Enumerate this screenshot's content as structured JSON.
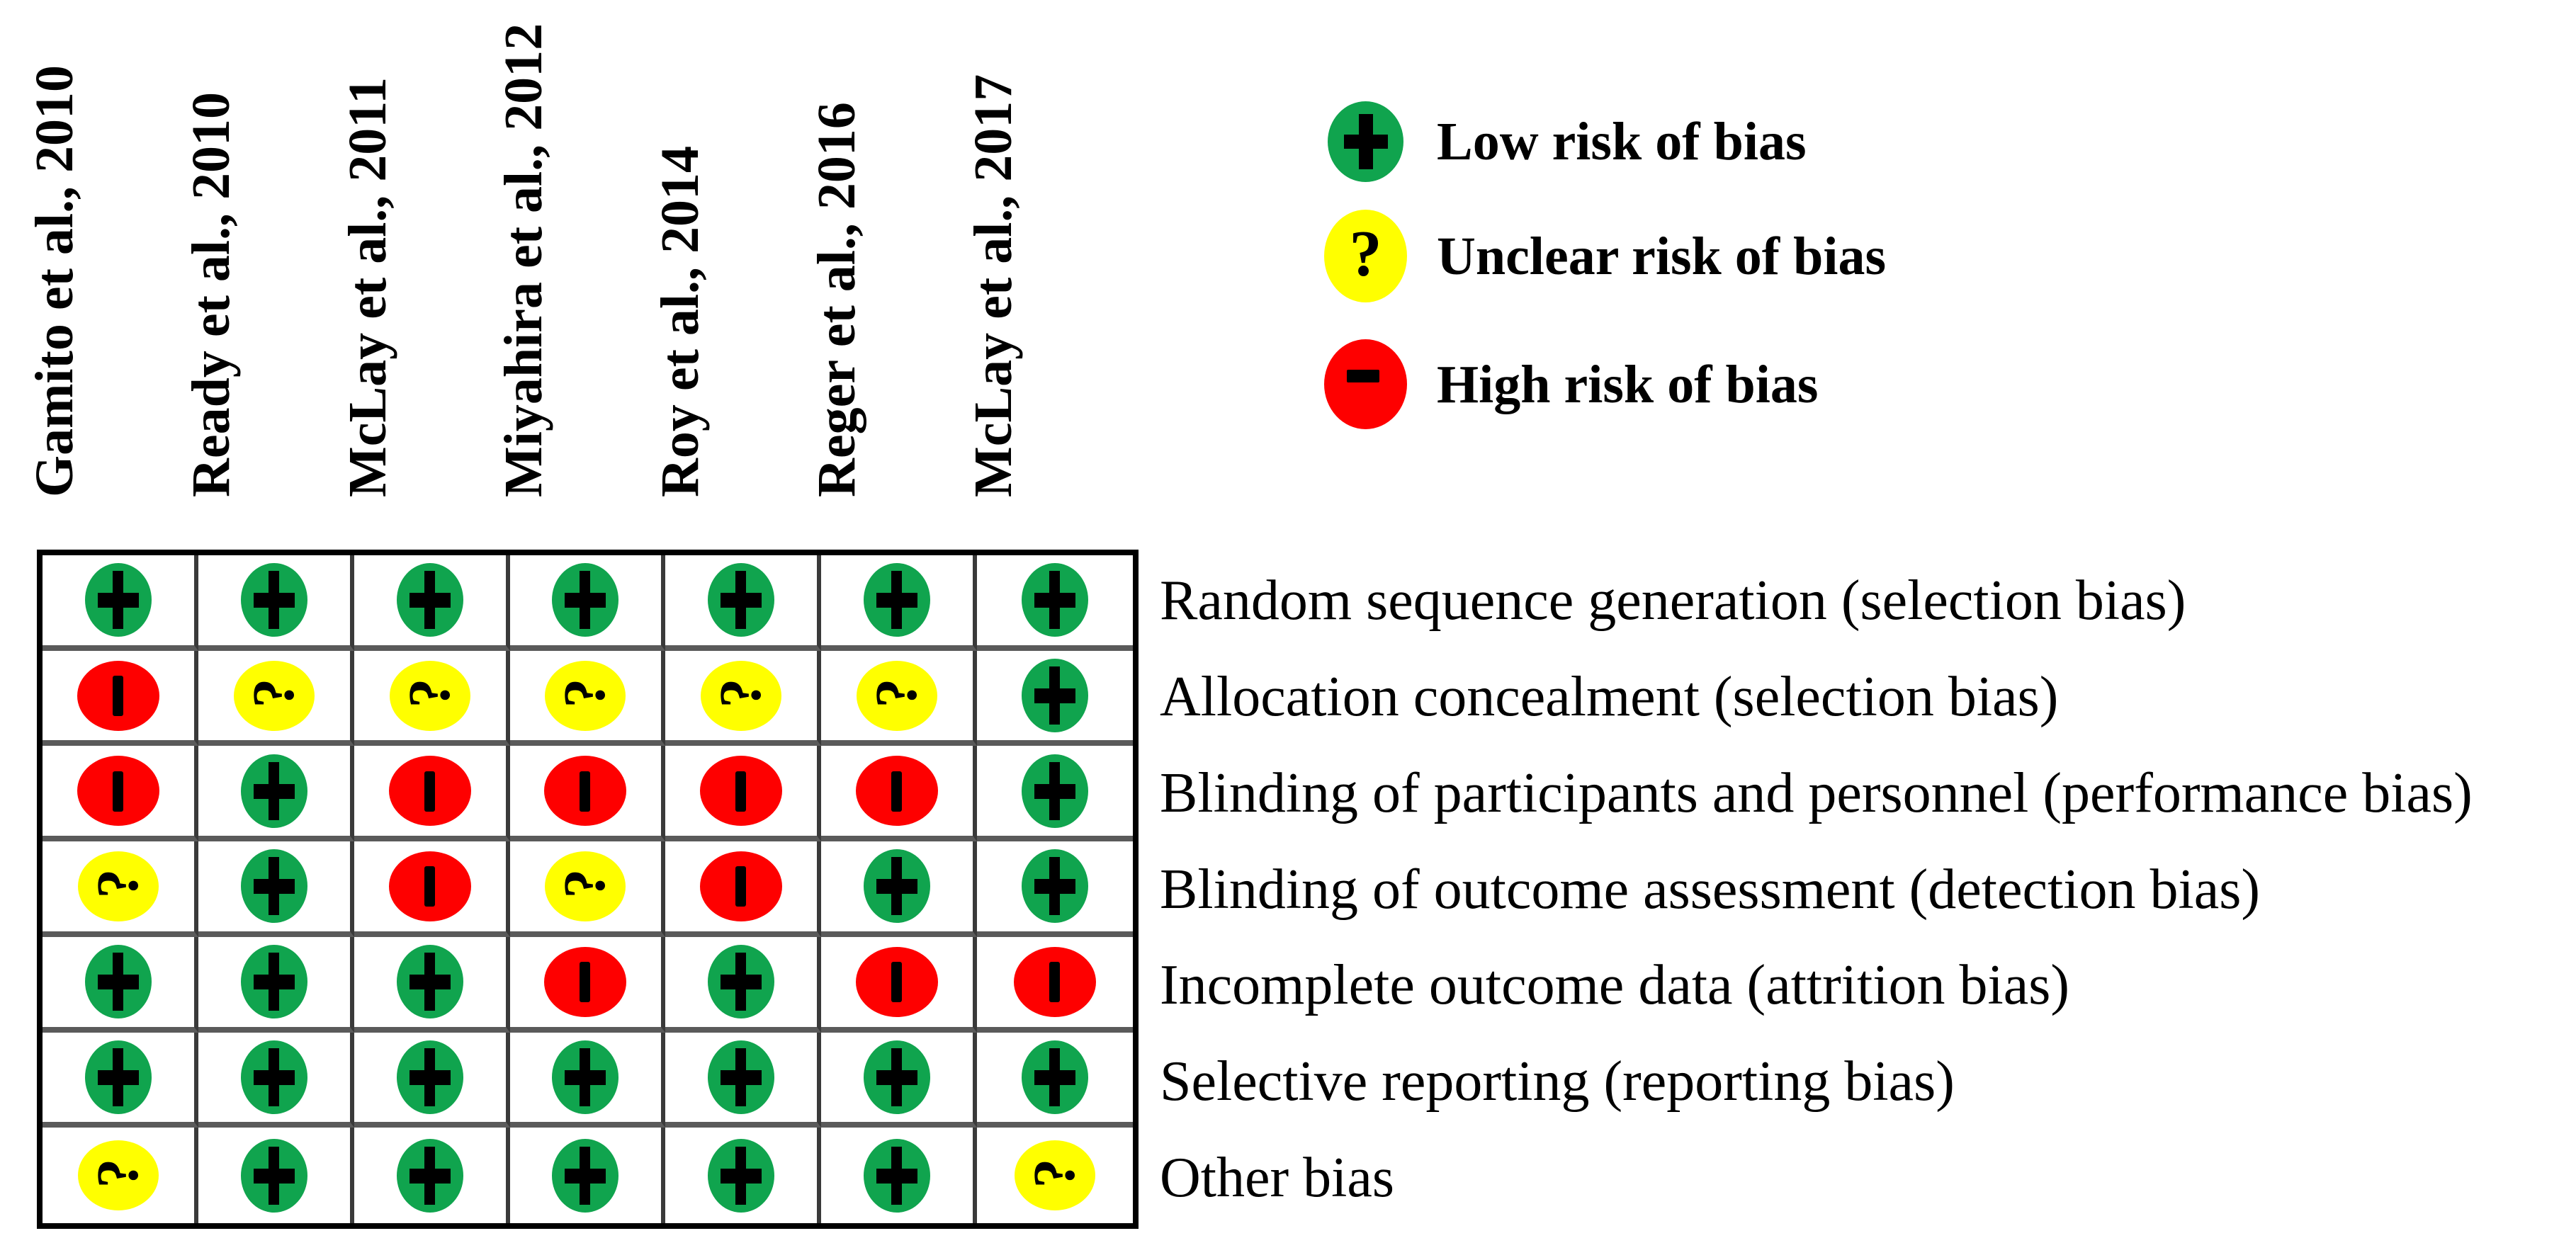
{
  "colors": {
    "low": "#10a44e",
    "unclear": "#ffff00",
    "high": "#fe0000"
  },
  "symbols": {
    "low": "+",
    "unclear": "?",
    "high": "-"
  },
  "studies": [
    "Gamito et al., 2010",
    "Ready et al., 2010",
    "McLay et al., 2011",
    "Miyahira et al., 2012",
    "Roy et al., 2014",
    "Reger et al., 2016",
    "McLay et al., 2017"
  ],
  "rows": [
    {
      "label": "Random sequence generation (selection bias)"
    },
    {
      "label": "Allocation concealment (selection bias)"
    },
    {
      "label": "Blinding of participants and personnel (performance bias)"
    },
    {
      "label": "Blinding of outcome assessment (detection bias)"
    },
    {
      "label": "Incomplete outcome data (attrition bias)"
    },
    {
      "label": "Selective reporting (reporting bias)"
    },
    {
      "label": "Other bias"
    }
  ],
  "legend": {
    "items": [
      {
        "level": "low",
        "symbol": "+",
        "label": "Low risk of bias"
      },
      {
        "level": "unclear",
        "symbol": "?",
        "label": "Unclear risk of bias"
      },
      {
        "level": "high",
        "symbol": "-",
        "label": "High risk of bias"
      }
    ]
  },
  "chart_data": {
    "type": "heatmap",
    "title": "Risk of bias summary",
    "columns": [
      "Gamito et al., 2010",
      "Ready et al., 2010",
      "McLay et al., 2011",
      "Miyahira et al., 2012",
      "Roy et al., 2014",
      "Reger et al., 2016",
      "McLay et al., 2017"
    ],
    "row_labels": [
      "Random sequence generation (selection bias)",
      "Allocation concealment (selection bias)",
      "Blinding of participants and personnel (performance bias)",
      "Blinding of outcome assessment (detection bias)",
      "Incomplete outcome data (attrition bias)",
      "Selective reporting (reporting bias)",
      "Other bias"
    ],
    "value_legend": {
      "low": "Low risk of bias",
      "unclear": "Unclear risk of bias",
      "high": "High risk of bias"
    },
    "values": [
      [
        "low",
        "low",
        "low",
        "low",
        "low",
        "low",
        "low"
      ],
      [
        "high",
        "unclear",
        "unclear",
        "unclear",
        "unclear",
        "unclear",
        "low"
      ],
      [
        "high",
        "low",
        "high",
        "high",
        "high",
        "high",
        "low"
      ],
      [
        "unclear",
        "low",
        "high",
        "unclear",
        "high",
        "low",
        "low"
      ],
      [
        "low",
        "low",
        "low",
        "high",
        "low",
        "high",
        "high"
      ],
      [
        "low",
        "low",
        "low",
        "low",
        "low",
        "low",
        "low"
      ],
      [
        "unclear",
        "low",
        "low",
        "low",
        "low",
        "low",
        "unclear"
      ]
    ]
  }
}
